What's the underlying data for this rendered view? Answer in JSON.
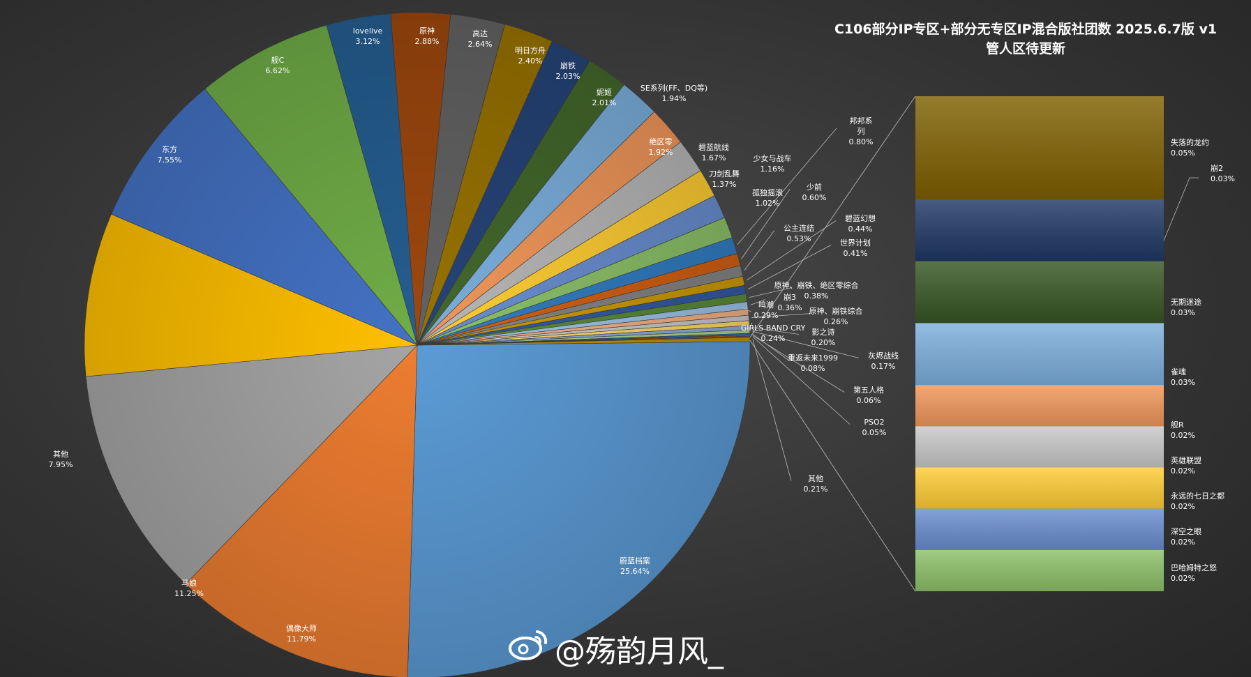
{
  "title_line1": "C106部分IP专区+部分无专区IP混合版社团数   2025.6.7版 v1",
  "title_line2": "管人区待更新",
  "watermark": "@殇韵月风_",
  "watermark_icon": "weibo-icon",
  "chart_data": {
    "type": "pie",
    "title": "C106部分IP专区+部分无专区IP混合版社团数   2025.6.7版 v1",
    "subtitle": "管人区待更新",
    "unit": "%",
    "slices": [
      {
        "label": "蔚蓝档案",
        "value": 25.64,
        "color": "#5b9bd5"
      },
      {
        "label": "偶像大师",
        "value": 11.79,
        "color": "#ed7d31"
      },
      {
        "label": "马娘",
        "value": 11.25,
        "color": "#a5a5a5"
      },
      {
        "label": "其他",
        "value": 7.95,
        "color": "#ffc000"
      },
      {
        "label": "东方",
        "value": 7.55,
        "color": "#4472c4"
      },
      {
        "label": "舰C",
        "value": 6.62,
        "color": "#70ad47"
      },
      {
        "label": "lovelive",
        "value": 3.12,
        "color": "#255e91"
      },
      {
        "label": "原神",
        "value": 2.88,
        "color": "#9e480e"
      },
      {
        "label": "高达",
        "value": 2.64,
        "color": "#636363"
      },
      {
        "label": "明日方舟",
        "value": 2.4,
        "color": "#997300"
      },
      {
        "label": "崩铁",
        "value": 2.03,
        "color": "#264478"
      },
      {
        "label": "妮姬",
        "value": 2.01,
        "color": "#43682b"
      },
      {
        "label": "SE系列(FF、DQ等)",
        "value": 1.94,
        "color": "#7cafdd"
      },
      {
        "label": "绝区零",
        "value": 1.92,
        "color": "#f1975a"
      },
      {
        "label": "碧蓝航线",
        "value": 1.67,
        "color": "#b7b7b7"
      },
      {
        "label": "刀剑乱舞",
        "value": 1.37,
        "color": "#ffcd33"
      },
      {
        "label": "少女与战车",
        "value": 1.16,
        "color": "#698ed0"
      },
      {
        "label": "孤独摇滚",
        "value": 1.02,
        "color": "#8cc168"
      },
      {
        "label": "邦邦系列",
        "value": 0.8,
        "color": "#327dc2"
      },
      {
        "label": "少前",
        "value": 0.6,
        "color": "#d26012"
      },
      {
        "label": "公主连结",
        "value": 0.53,
        "color": "#848484"
      },
      {
        "label": "碧蓝幻想",
        "value": 0.44,
        "color": "#cc9a00"
      },
      {
        "label": "世界计划",
        "value": 0.41,
        "color": "#335aa1"
      },
      {
        "label": "原神、崩铁、绝区零综合",
        "value": 0.38,
        "color": "#5a8a39"
      },
      {
        "label": "崩3",
        "value": 0.36,
        "color": "#9cc3e6"
      },
      {
        "label": "鸣潮",
        "value": 0.29,
        "color": "#f4b183"
      },
      {
        "label": "原神、崩铁综合",
        "value": 0.26,
        "color": "#c9c9c9"
      },
      {
        "label": "GIRLS BAND CRY",
        "value": 0.24,
        "color": "#ffd966"
      },
      {
        "label": "影之诗",
        "value": 0.2,
        "color": "#8faadc"
      },
      {
        "label": "灰烬战线",
        "value": 0.17,
        "color": "#a9d18e"
      },
      {
        "label": "重返未来1999",
        "value": 0.08,
        "color": "#2e75b6"
      },
      {
        "label": "第五人格",
        "value": 0.06,
        "color": "#c55a11"
      },
      {
        "label": "PSO2",
        "value": 0.05,
        "color": "#7b7b7b"
      },
      {
        "label": "其他",
        "value": 0.21,
        "color": "#bf9000"
      }
    ],
    "breakout": {
      "type": "bar-of-pie",
      "items": [
        {
          "label": "失落的龙约",
          "value": 0.05,
          "color": "#7f6000"
        },
        {
          "label": "崩2",
          "value": 0.03,
          "color": "#1f3864"
        },
        {
          "label": "无期迷途",
          "value": 0.03,
          "color": "#375623"
        },
        {
          "label": "雀魂",
          "value": 0.03,
          "color": "#7cafdd"
        },
        {
          "label": "舰R",
          "value": 0.02,
          "color": "#f1975a"
        },
        {
          "label": "英雄联盟",
          "value": 0.02,
          "color": "#c9c9c9"
        },
        {
          "label": "永远的七日之都",
          "value": 0.02,
          "color": "#ffcd33"
        },
        {
          "label": "深空之眼",
          "value": 0.02,
          "color": "#698ed0"
        },
        {
          "label": "巴哈姆特之怒",
          "value": 0.02,
          "color": "#8cc168"
        }
      ]
    }
  }
}
